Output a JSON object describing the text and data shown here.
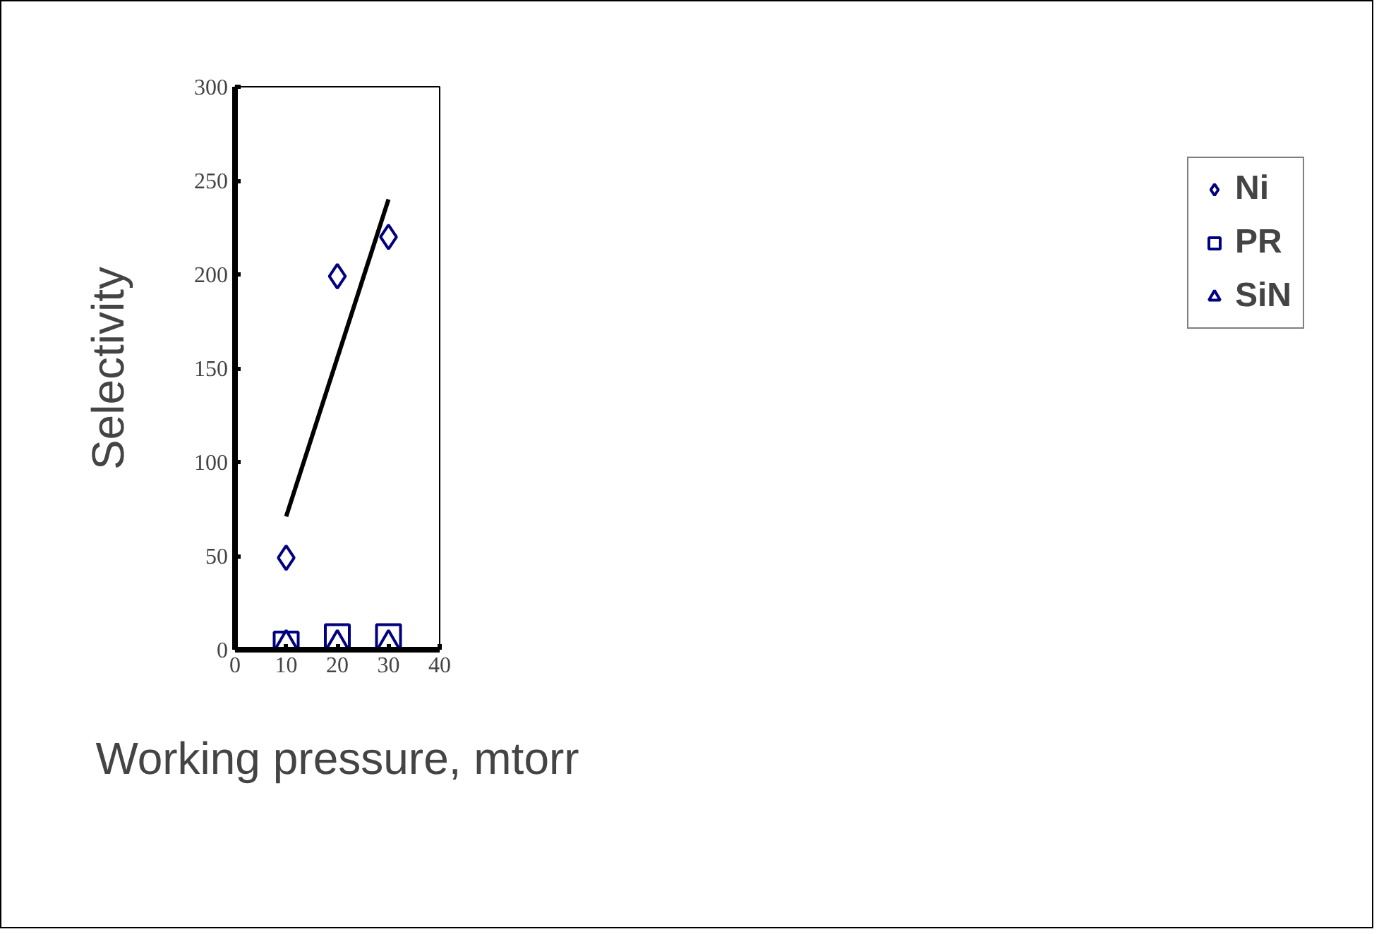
{
  "chart_data": {
    "type": "scatter",
    "xlabel": "Working pressure, mtorr",
    "ylabel": "Selectivity",
    "x": [
      10,
      20,
      30
    ],
    "xlim": [
      0,
      40
    ],
    "ylim": [
      0,
      300
    ],
    "xticks": [
      0,
      10,
      20,
      30,
      40
    ],
    "yticks": [
      0,
      50,
      100,
      150,
      200,
      250,
      300
    ],
    "grid": false,
    "legend": "right",
    "series": [
      {
        "name": "Ni",
        "color": "#000080",
        "marker": "diamond",
        "values": [
          49,
          199,
          220
        ]
      },
      {
        "name": "PR",
        "color": "#000080",
        "marker": "square",
        "values": [
          3,
          7,
          7
        ]
      },
      {
        "name": "SiN",
        "color": "#000080",
        "marker": "triangle",
        "values": [
          3,
          3,
          3
        ]
      },
      {
        "type": "line",
        "color": "#000000",
        "x": [
          10,
          30
        ],
        "values": [
          71,
          240
        ]
      }
    ]
  }
}
